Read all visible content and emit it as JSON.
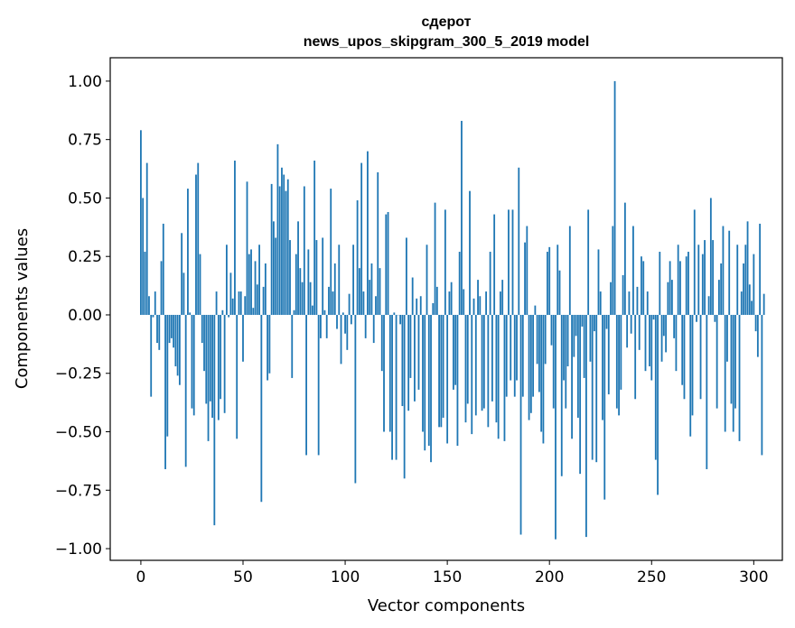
{
  "chart_data": {
    "type": "bar",
    "title": "сдерот",
    "subtitle": "news_upos_skipgram_300_5_2019 model",
    "xlabel": "Vector components",
    "ylabel": "Components values",
    "xlim": [
      -15,
      314
    ],
    "ylim": [
      -1.05,
      1.1
    ],
    "xticks": [
      0,
      50,
      100,
      150,
      200,
      250,
      300
    ],
    "yticks": [
      -1.0,
      -0.75,
      -0.5,
      -0.25,
      0.0,
      0.25,
      0.5,
      0.75,
      1.0
    ],
    "xtick_labels": [
      "0",
      "50",
      "100",
      "150",
      "200",
      "250",
      "300"
    ],
    "ytick_labels": [
      "−1.00",
      "−0.75",
      "−0.50",
      "−0.25",
      "0.00",
      "0.25",
      "0.50",
      "0.75",
      "1.00"
    ],
    "bar_color": "#1f77b4",
    "values": [
      0.79,
      0.5,
      0.27,
      0.65,
      0.08,
      -0.35,
      -0.01,
      0.1,
      -0.12,
      -0.15,
      0.23,
      0.39,
      -0.66,
      -0.52,
      -0.12,
      -0.1,
      -0.14,
      -0.22,
      -0.26,
      -0.3,
      0.35,
      0.18,
      -0.65,
      0.54,
      0.01,
      -0.4,
      -0.43,
      0.6,
      0.65,
      0.26,
      -0.12,
      -0.24,
      -0.38,
      -0.54,
      -0.37,
      -0.44,
      -0.9,
      0.1,
      -0.45,
      -0.36,
      0.02,
      -0.42,
      0.3,
      -0.01,
      0.18,
      0.07,
      0.66,
      -0.53,
      0.1,
      0.1,
      -0.2,
      0.08,
      0.57,
      0.26,
      0.28,
      0.03,
      0.23,
      0.13,
      0.3,
      -0.8,
      0.12,
      0.22,
      -0.28,
      -0.25,
      0.56,
      0.4,
      0.33,
      0.73,
      0.55,
      0.63,
      0.6,
      0.53,
      0.58,
      0.32,
      -0.27,
      0.02,
      0.26,
      0.4,
      0.2,
      0.14,
      0.55,
      -0.6,
      0.28,
      0.14,
      0.04,
      0.66,
      0.32,
      -0.6,
      -0.1,
      0.33,
      0.02,
      -0.1,
      0.12,
      0.54,
      0.1,
      0.22,
      -0.06,
      0.3,
      -0.21,
      0.01,
      -0.08,
      -0.15,
      0.09,
      -0.04,
      0.3,
      -0.72,
      0.49,
      0.2,
      0.65,
      0.1,
      -0.1,
      0.7,
      0.15,
      0.22,
      -0.12,
      0.08,
      0.61,
      0.2,
      -0.24,
      -0.5,
      0.43,
      0.44,
      -0.5,
      -0.62,
      0.01,
      -0.62,
      0.0,
      -0.04,
      -0.39,
      -0.7,
      0.33,
      -0.41,
      -0.27,
      0.16,
      -0.37,
      0.07,
      -0.32,
      0.08,
      -0.5,
      -0.58,
      0.3,
      -0.56,
      -0.63,
      0.05,
      0.48,
      0.12,
      -0.48,
      -0.48,
      -0.44,
      0.45,
      -0.55,
      0.1,
      0.14,
      -0.32,
      -0.3,
      -0.56,
      0.27,
      0.83,
      0.11,
      -0.46,
      -0.38,
      0.53,
      -0.51,
      0.07,
      -0.43,
      0.15,
      0.08,
      -0.41,
      -0.4,
      0.1,
      -0.48,
      0.27,
      -0.37,
      0.43,
      -0.46,
      -0.53,
      0.1,
      0.15,
      -0.54,
      -0.35,
      0.45,
      -0.28,
      0.45,
      -0.35,
      -0.28,
      0.63,
      -0.94,
      -0.35,
      0.31,
      0.38,
      -0.45,
      -0.42,
      -0.35,
      0.04,
      -0.21,
      -0.33,
      -0.5,
      -0.55,
      -0.21,
      0.27,
      0.29,
      -0.13,
      -0.4,
      -0.96,
      0.3,
      0.19,
      -0.69,
      -0.28,
      -0.4,
      -0.22,
      0.38,
      -0.53,
      -0.18,
      -0.09,
      -0.44,
      -0.68,
      -0.05,
      -0.27,
      -0.95,
      0.45,
      -0.2,
      -0.62,
      -0.07,
      -0.63,
      0.28,
      0.1,
      -0.45,
      -0.79,
      -0.06,
      -0.34,
      0.14,
      0.38,
      1.0,
      -0.4,
      -0.43,
      -0.32,
      0.17,
      0.48,
      -0.14,
      0.1,
      -0.08,
      0.38,
      -0.36,
      0.12,
      -0.15,
      0.25,
      0.23,
      -0.24,
      0.1,
      -0.22,
      -0.28,
      -0.02,
      -0.62,
      -0.77,
      0.27,
      -0.2,
      -0.09,
      -0.16,
      0.14,
      0.23,
      0.15,
      -0.1,
      -0.24,
      0.3,
      0.23,
      -0.3,
      -0.36,
      0.25,
      0.27,
      -0.52,
      -0.43,
      0.45,
      -0.03,
      0.3,
      -0.36,
      0.26,
      0.32,
      -0.66,
      0.08,
      0.5,
      0.32,
      -0.03,
      -0.4,
      0.15,
      0.22,
      0.38,
      -0.5,
      -0.2,
      0.36,
      -0.38,
      -0.5,
      -0.4,
      0.3,
      -0.54,
      0.1,
      0.22,
      0.3,
      0.4,
      0.13,
      0.06,
      0.26,
      -0.07,
      -0.18,
      0.39,
      -0.6,
      0.09
    ]
  }
}
